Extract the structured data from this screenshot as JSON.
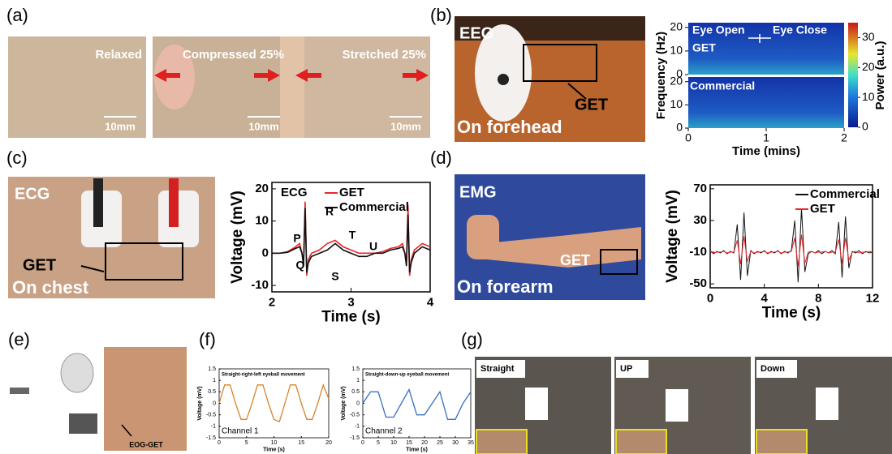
{
  "panel_a": {
    "label": "(a)",
    "photos": [
      {
        "caption": "Relaxed",
        "scale": "10mm"
      },
      {
        "caption": "Compressed 25%",
        "scale": "10mm"
      },
      {
        "caption": "Stretched 25%",
        "scale": "10mm"
      }
    ]
  },
  "panel_b": {
    "label": "(b)",
    "photo": {
      "signal": "EEG",
      "sensor": "GET",
      "location": "On forehead"
    },
    "spectrogram": {
      "ylabel": "Frequency (Hz)",
      "xlabel": "Time (mins)",
      "colorbar_label": "Power (a.u.)",
      "top_label": "GET",
      "bottom_label": "Commercial",
      "annotations": [
        "Eye Open",
        "Eye Close"
      ],
      "xlim": [
        0,
        2
      ],
      "xticks": [
        0,
        1,
        2
      ],
      "ylim": [
        0,
        22
      ],
      "yticks": [
        0,
        10,
        20
      ],
      "colorbar_lim": [
        0,
        35
      ],
      "colorbar_ticks": [
        0,
        10,
        20,
        30
      ]
    }
  },
  "panel_c": {
    "label": "(c)",
    "photo": {
      "signal": "ECG",
      "sensor": "GET",
      "location": "On chest"
    },
    "plot": {
      "title": "ECG",
      "xlabel": "Time (s)",
      "ylabel": "Voltage (mV)",
      "xlim": [
        2,
        4
      ],
      "xticks": [
        2,
        3,
        4
      ],
      "ylim": [
        -12,
        22
      ],
      "yticks": [
        -10,
        0,
        10,
        20
      ],
      "peak_labels": [
        "P",
        "Q",
        "R",
        "S",
        "T",
        "U"
      ],
      "x": [
        2,
        2.1,
        2.2,
        2.3,
        2.35,
        2.38,
        2.4,
        2.42,
        2.44,
        2.46,
        2.5,
        2.6,
        2.7,
        2.8,
        2.9,
        3.0,
        3.1,
        3.2,
        3.3,
        3.4,
        3.5,
        3.6,
        3.65,
        3.68,
        3.7,
        3.72,
        3.74,
        3.76,
        3.8,
        3.9,
        4.0
      ],
      "series": [
        {
          "name": "GET",
          "color": "#e8262a",
          "values": [
            0,
            0,
            0.5,
            2,
            3,
            0,
            -3,
            16,
            -7,
            -2,
            0,
            1,
            3,
            4,
            2,
            1,
            0,
            0,
            0,
            0.5,
            1.5,
            2,
            3,
            0,
            -3,
            15,
            -7,
            -2,
            1,
            3,
            2
          ]
        },
        {
          "name": "Commercial",
          "color": "#111111",
          "values": [
            0,
            0,
            0.3,
            1.5,
            2,
            0,
            -4,
            14,
            -6,
            -3,
            -1,
            0,
            1,
            3,
            1,
            0,
            -1,
            -1,
            0,
            0,
            1,
            1.5,
            2,
            0,
            -4,
            12,
            -6,
            -3,
            0,
            2,
            1
          ]
        }
      ]
    }
  },
  "panel_d": {
    "label": "(d)",
    "photo": {
      "signal": "EMG",
      "sensor": "GET",
      "location": "On forearm"
    },
    "plot": {
      "xlabel": "Time (s)",
      "ylabel": "Voltage (mV)",
      "xlim": [
        0,
        12
      ],
      "xticks": [
        0,
        4,
        8,
        12
      ],
      "ylim": [
        -55,
        75
      ],
      "yticks": [
        -50,
        -10,
        30,
        70
      ],
      "x": [
        0,
        0.25,
        0.5,
        0.75,
        1,
        1.25,
        1.5,
        1.75,
        2,
        2.25,
        2.5,
        2.75,
        3,
        3.25,
        3.5,
        3.75,
        4,
        4.25,
        4.5,
        4.75,
        5,
        5.25,
        5.5,
        5.75,
        6,
        6.25,
        6.5,
        6.75,
        7,
        7.25,
        7.5,
        7.75,
        8,
        8.25,
        8.5,
        8.75,
        9,
        9.25,
        9.5,
        9.75,
        10,
        10.25,
        10.5,
        10.75,
        11,
        11.25,
        11.5,
        11.75,
        12
      ],
      "series": [
        {
          "name": "Commercial",
          "color": "#111111",
          "values": [
            -8,
            -12,
            -9,
            -11,
            -8,
            -12,
            -9,
            -11,
            25,
            -45,
            40,
            -40,
            -8,
            -12,
            -9,
            -11,
            -8,
            -12,
            -9,
            -11,
            -8,
            -12,
            -9,
            -11,
            -8,
            30,
            -48,
            45,
            -35,
            -12,
            -9,
            -11,
            -8,
            -12,
            -9,
            -11,
            -8,
            -12,
            28,
            -42,
            35,
            -30,
            -9,
            -11,
            -8,
            -12,
            -9,
            -11,
            -10
          ]
        },
        {
          "name": "GET",
          "color": "#e8262a",
          "values": [
            -9,
            -11,
            -10,
            -10,
            -9,
            -11,
            -10,
            -10,
            5,
            -25,
            10,
            -22,
            -9,
            -11,
            -10,
            -10,
            -9,
            -11,
            -10,
            -10,
            -9,
            -11,
            -10,
            -10,
            -9,
            8,
            -28,
            12,
            -24,
            -10,
            -9,
            -11,
            -10,
            -10,
            -9,
            -11,
            -10,
            -10,
            6,
            -24,
            8,
            -20,
            -10,
            -9,
            -11,
            -10,
            -10,
            -9,
            -10
          ]
        }
      ]
    }
  },
  "panel_e": {
    "label": "(e)",
    "face_label": "EOG-GET"
  },
  "panel_f": {
    "label": "(f)",
    "plots": [
      {
        "title": "Straight-right-left eyeball movement",
        "channel": "Channel 1",
        "xlabel": "Time (s)",
        "ylabel": "Voltage (mV)",
        "xlim": [
          0,
          20
        ],
        "xticks": [
          0,
          5,
          10,
          15,
          20
        ],
        "ylim": [
          -1.5,
          1.5
        ],
        "yticks": [
          -1.5,
          -1,
          -0.5,
          0,
          0.5,
          1,
          1.5
        ],
        "x": [
          0,
          1,
          2,
          3,
          4,
          5,
          6,
          7,
          8,
          9,
          10,
          11,
          12,
          13,
          14,
          15,
          16,
          17,
          18,
          19,
          20
        ],
        "series": [
          {
            "color": "#d9822b",
            "values": [
              0,
              0.8,
              0.8,
              0,
              -0.7,
              -0.7,
              0,
              0.8,
              0.8,
              0,
              -0.7,
              -0.8,
              0,
              0.8,
              0.8,
              0,
              -0.7,
              -0.7,
              0,
              0.8,
              0.2
            ]
          }
        ]
      },
      {
        "title": "Straight-down-up eyeball movement",
        "channel": "Channel 2",
        "xlabel": "Time (s)",
        "ylabel": "Voltage (mV)",
        "xlim": [
          0,
          35
        ],
        "xticks": [
          0,
          5,
          10,
          15,
          20,
          25,
          30,
          35
        ],
        "ylim": [
          -1.5,
          1.5
        ],
        "yticks": [
          -1.5,
          -1,
          -0.5,
          0,
          0.5,
          1,
          1.5
        ],
        "x": [
          0,
          2.5,
          5,
          7.5,
          10,
          12.5,
          15,
          17.5,
          20,
          22.5,
          25,
          27.5,
          30,
          32.5,
          35
        ],
        "series": [
          {
            "color": "#3a6fc4",
            "values": [
              0,
              0.5,
              0.5,
              -0.6,
              -0.6,
              0,
              0.6,
              -0.5,
              -0.5,
              0,
              0.5,
              -0.7,
              -0.7,
              0,
              0.5
            ]
          }
        ]
      }
    ]
  },
  "panel_g": {
    "label": "(g)",
    "photos": [
      "Straight",
      "UP",
      "Down"
    ]
  }
}
